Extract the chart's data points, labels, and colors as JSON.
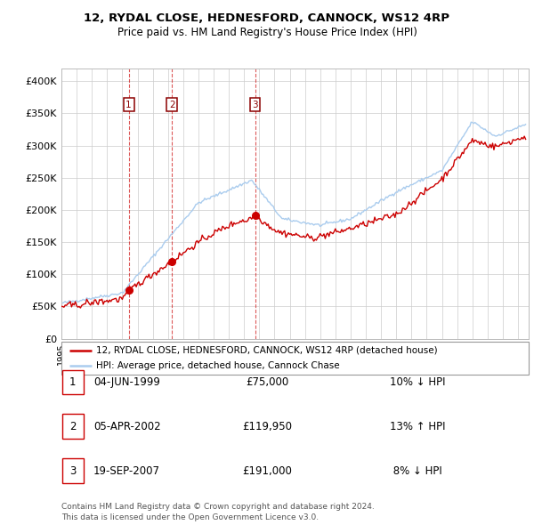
{
  "title": "12, RYDAL CLOSE, HEDNESFORD, CANNOCK, WS12 4RP",
  "subtitle": "Price paid vs. HM Land Registry's House Price Index (HPI)",
  "ylim": [
    0,
    420000
  ],
  "yticks": [
    0,
    50000,
    100000,
    150000,
    200000,
    250000,
    300000,
    350000,
    400000
  ],
  "ytick_labels": [
    "£0",
    "£50K",
    "£100K",
    "£150K",
    "£200K",
    "£250K",
    "£300K",
    "£350K",
    "£400K"
  ],
  "hpi_color": "#aaccee",
  "price_color": "#cc0000",
  "vline_color": "#cc0000",
  "transactions": [
    {
      "date": 1999.42,
      "price": 75000,
      "label": "1"
    },
    {
      "date": 2002.26,
      "price": 119950,
      "label": "2"
    },
    {
      "date": 2007.72,
      "price": 191000,
      "label": "3"
    }
  ],
  "legend_price_label": "12, RYDAL CLOSE, HEDNESFORD, CANNOCK, WS12 4RP (detached house)",
  "legend_hpi_label": "HPI: Average price, detached house, Cannock Chase",
  "table_rows": [
    {
      "num": "1",
      "date": "04-JUN-1999",
      "price": "£75,000",
      "change": "10% ↓ HPI"
    },
    {
      "num": "2",
      "date": "05-APR-2002",
      "price": "£119,950",
      "change": "13% ↑ HPI"
    },
    {
      "num": "3",
      "date": "19-SEP-2007",
      "price": "£191,000",
      "change": " 8% ↓ HPI"
    }
  ],
  "footer": "Contains HM Land Registry data © Crown copyright and database right 2024.\nThis data is licensed under the Open Government Licence v3.0.",
  "background_color": "#ffffff",
  "grid_color": "#cccccc"
}
